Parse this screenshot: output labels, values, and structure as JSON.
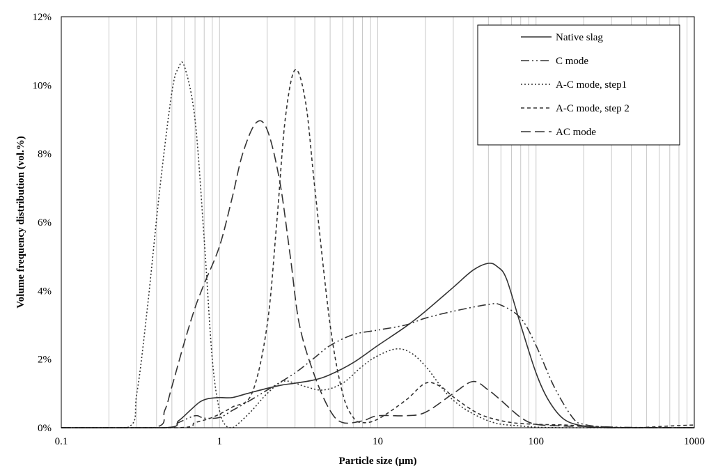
{
  "chart_data": {
    "type": "line",
    "xscale": "log",
    "xlim": [
      0.1,
      1000
    ],
    "ylim": [
      0,
      12
    ],
    "xlabel": "Particle size (µm)",
    "ylabel": "Volume frequency distribution (vol.%)",
    "x_ticks": [
      {
        "value": 0.1,
        "label": "0.1"
      },
      {
        "value": 1,
        "label": "1"
      },
      {
        "value": 10,
        "label": "10"
      },
      {
        "value": 100,
        "label": "100"
      },
      {
        "value": 1000,
        "label": "1000"
      }
    ],
    "y_ticks": [
      {
        "value": 0,
        "label": "0%"
      },
      {
        "value": 2,
        "label": "2%"
      },
      {
        "value": 4,
        "label": "4%"
      },
      {
        "value": 6,
        "label": "6%"
      },
      {
        "value": 8,
        "label": "8%"
      },
      {
        "value": 10,
        "label": "10%"
      },
      {
        "value": 12,
        "label": "12%"
      }
    ],
    "grid": {
      "vertical_log_minor": true,
      "horizontal": false
    },
    "legend_position": "top-right",
    "series": [
      {
        "name": "Native slag",
        "dash": "solid",
        "points": [
          [
            0.1,
            0
          ],
          [
            0.45,
            0
          ],
          [
            0.55,
            0.2
          ],
          [
            0.65,
            0.5
          ],
          [
            0.75,
            0.75
          ],
          [
            0.85,
            0.85
          ],
          [
            1.0,
            0.88
          ],
          [
            1.2,
            0.88
          ],
          [
            1.5,
            1.0
          ],
          [
            2.0,
            1.15
          ],
          [
            2.5,
            1.25
          ],
          [
            3.0,
            1.3
          ],
          [
            4.0,
            1.4
          ],
          [
            5.0,
            1.55
          ],
          [
            7.0,
            1.9
          ],
          [
            10,
            2.4
          ],
          [
            15,
            2.95
          ],
          [
            20,
            3.4
          ],
          [
            30,
            4.1
          ],
          [
            40,
            4.6
          ],
          [
            50,
            4.8
          ],
          [
            57,
            4.7
          ],
          [
            65,
            4.35
          ],
          [
            80,
            3.0
          ],
          [
            100,
            1.6
          ],
          [
            120,
            0.8
          ],
          [
            150,
            0.25
          ],
          [
            200,
            0.05
          ],
          [
            300,
            0
          ],
          [
            1000,
            0
          ]
        ]
      },
      {
        "name": "C mode",
        "dash": "12,4,2,4,2,4",
        "points": [
          [
            0.1,
            0
          ],
          [
            0.45,
            0
          ],
          [
            0.55,
            0.15
          ],
          [
            0.7,
            0.35
          ],
          [
            0.8,
            0.28
          ],
          [
            1.0,
            0.3
          ],
          [
            1.2,
            0.5
          ],
          [
            1.5,
            0.75
          ],
          [
            2.0,
            1.1
          ],
          [
            3.0,
            1.6
          ],
          [
            4.0,
            2.05
          ],
          [
            5.0,
            2.4
          ],
          [
            7.0,
            2.72
          ],
          [
            10,
            2.85
          ],
          [
            15,
            3.0
          ],
          [
            20,
            3.2
          ],
          [
            30,
            3.4
          ],
          [
            50,
            3.6
          ],
          [
            60,
            3.58
          ],
          [
            80,
            3.2
          ],
          [
            100,
            2.4
          ],
          [
            130,
            1.2
          ],
          [
            170,
            0.3
          ],
          [
            200,
            0.1
          ],
          [
            300,
            0.02
          ],
          [
            1000,
            0
          ]
        ]
      },
      {
        "name": "A-C mode, step1",
        "dash": "2,3",
        "points": [
          [
            0.1,
            0
          ],
          [
            0.26,
            0
          ],
          [
            0.3,
            1.0
          ],
          [
            0.35,
            3.5
          ],
          [
            0.42,
            7.0
          ],
          [
            0.5,
            9.8
          ],
          [
            0.55,
            10.5
          ],
          [
            0.6,
            10.55
          ],
          [
            0.7,
            9.0
          ],
          [
            0.8,
            5.5
          ],
          [
            0.9,
            2.0
          ],
          [
            1.0,
            0.5
          ],
          [
            1.1,
            0.05
          ],
          [
            1.2,
            0
          ],
          [
            1.3,
            0.1
          ],
          [
            1.6,
            0.5
          ],
          [
            2.0,
            1.0
          ],
          [
            2.5,
            1.35
          ],
          [
            3.0,
            1.3
          ],
          [
            3.5,
            1.2
          ],
          [
            4.5,
            1.1
          ],
          [
            6.0,
            1.3
          ],
          [
            8.0,
            1.8
          ],
          [
            10,
            2.1
          ],
          [
            13,
            2.3
          ],
          [
            16,
            2.2
          ],
          [
            20,
            1.8
          ],
          [
            30,
            0.8
          ],
          [
            50,
            0.2
          ],
          [
            80,
            0.05
          ],
          [
            150,
            0
          ],
          [
            1000,
            0
          ]
        ]
      },
      {
        "name": "A-C mode, step 2",
        "dash": "5,4",
        "points": [
          [
            0.1,
            0
          ],
          [
            0.55,
            0
          ],
          [
            0.7,
            0.15
          ],
          [
            0.9,
            0.3
          ],
          [
            1.2,
            0.6
          ],
          [
            1.6,
            1.0
          ],
          [
            2.0,
            3.0
          ],
          [
            2.3,
            6.0
          ],
          [
            2.6,
            9.0
          ],
          [
            3.0,
            10.45
          ],
          [
            3.5,
            9.5
          ],
          [
            4.0,
            7.0
          ],
          [
            5.0,
            3.0
          ],
          [
            6.0,
            1.0
          ],
          [
            7.0,
            0.3
          ],
          [
            8.0,
            0.15
          ],
          [
            10,
            0.25
          ],
          [
            15,
            0.8
          ],
          [
            20,
            1.3
          ],
          [
            25,
            1.2
          ],
          [
            30,
            0.9
          ],
          [
            40,
            0.5
          ],
          [
            50,
            0.3
          ],
          [
            70,
            0.15
          ],
          [
            100,
            0.1
          ],
          [
            150,
            0.08
          ],
          [
            200,
            0.05
          ],
          [
            400,
            0
          ],
          [
            700,
            0.05
          ],
          [
            1000,
            0.08
          ]
        ]
      },
      {
        "name": "AC mode",
        "dash": "14,6",
        "points": [
          [
            0.1,
            0
          ],
          [
            0.38,
            0
          ],
          [
            0.45,
            0.5
          ],
          [
            0.5,
            1.2
          ],
          [
            0.6,
            2.5
          ],
          [
            0.7,
            3.5
          ],
          [
            0.8,
            4.2
          ],
          [
            1.0,
            5.3
          ],
          [
            1.2,
            6.7
          ],
          [
            1.4,
            8.0
          ],
          [
            1.7,
            8.9
          ],
          [
            2.0,
            8.7
          ],
          [
            2.4,
            7.2
          ],
          [
            2.8,
            5.0
          ],
          [
            3.2,
            3.0
          ],
          [
            4.0,
            1.5
          ],
          [
            5.0,
            0.5
          ],
          [
            6.0,
            0.15
          ],
          [
            8.0,
            0.2
          ],
          [
            10,
            0.35
          ],
          [
            15,
            0.35
          ],
          [
            20,
            0.45
          ],
          [
            30,
            1.0
          ],
          [
            40,
            1.35
          ],
          [
            50,
            1.1
          ],
          [
            60,
            0.8
          ],
          [
            80,
            0.3
          ],
          [
            100,
            0.1
          ],
          [
            150,
            0.05
          ],
          [
            200,
            0.04
          ],
          [
            300,
            0
          ],
          [
            1000,
            0
          ]
        ]
      }
    ]
  }
}
